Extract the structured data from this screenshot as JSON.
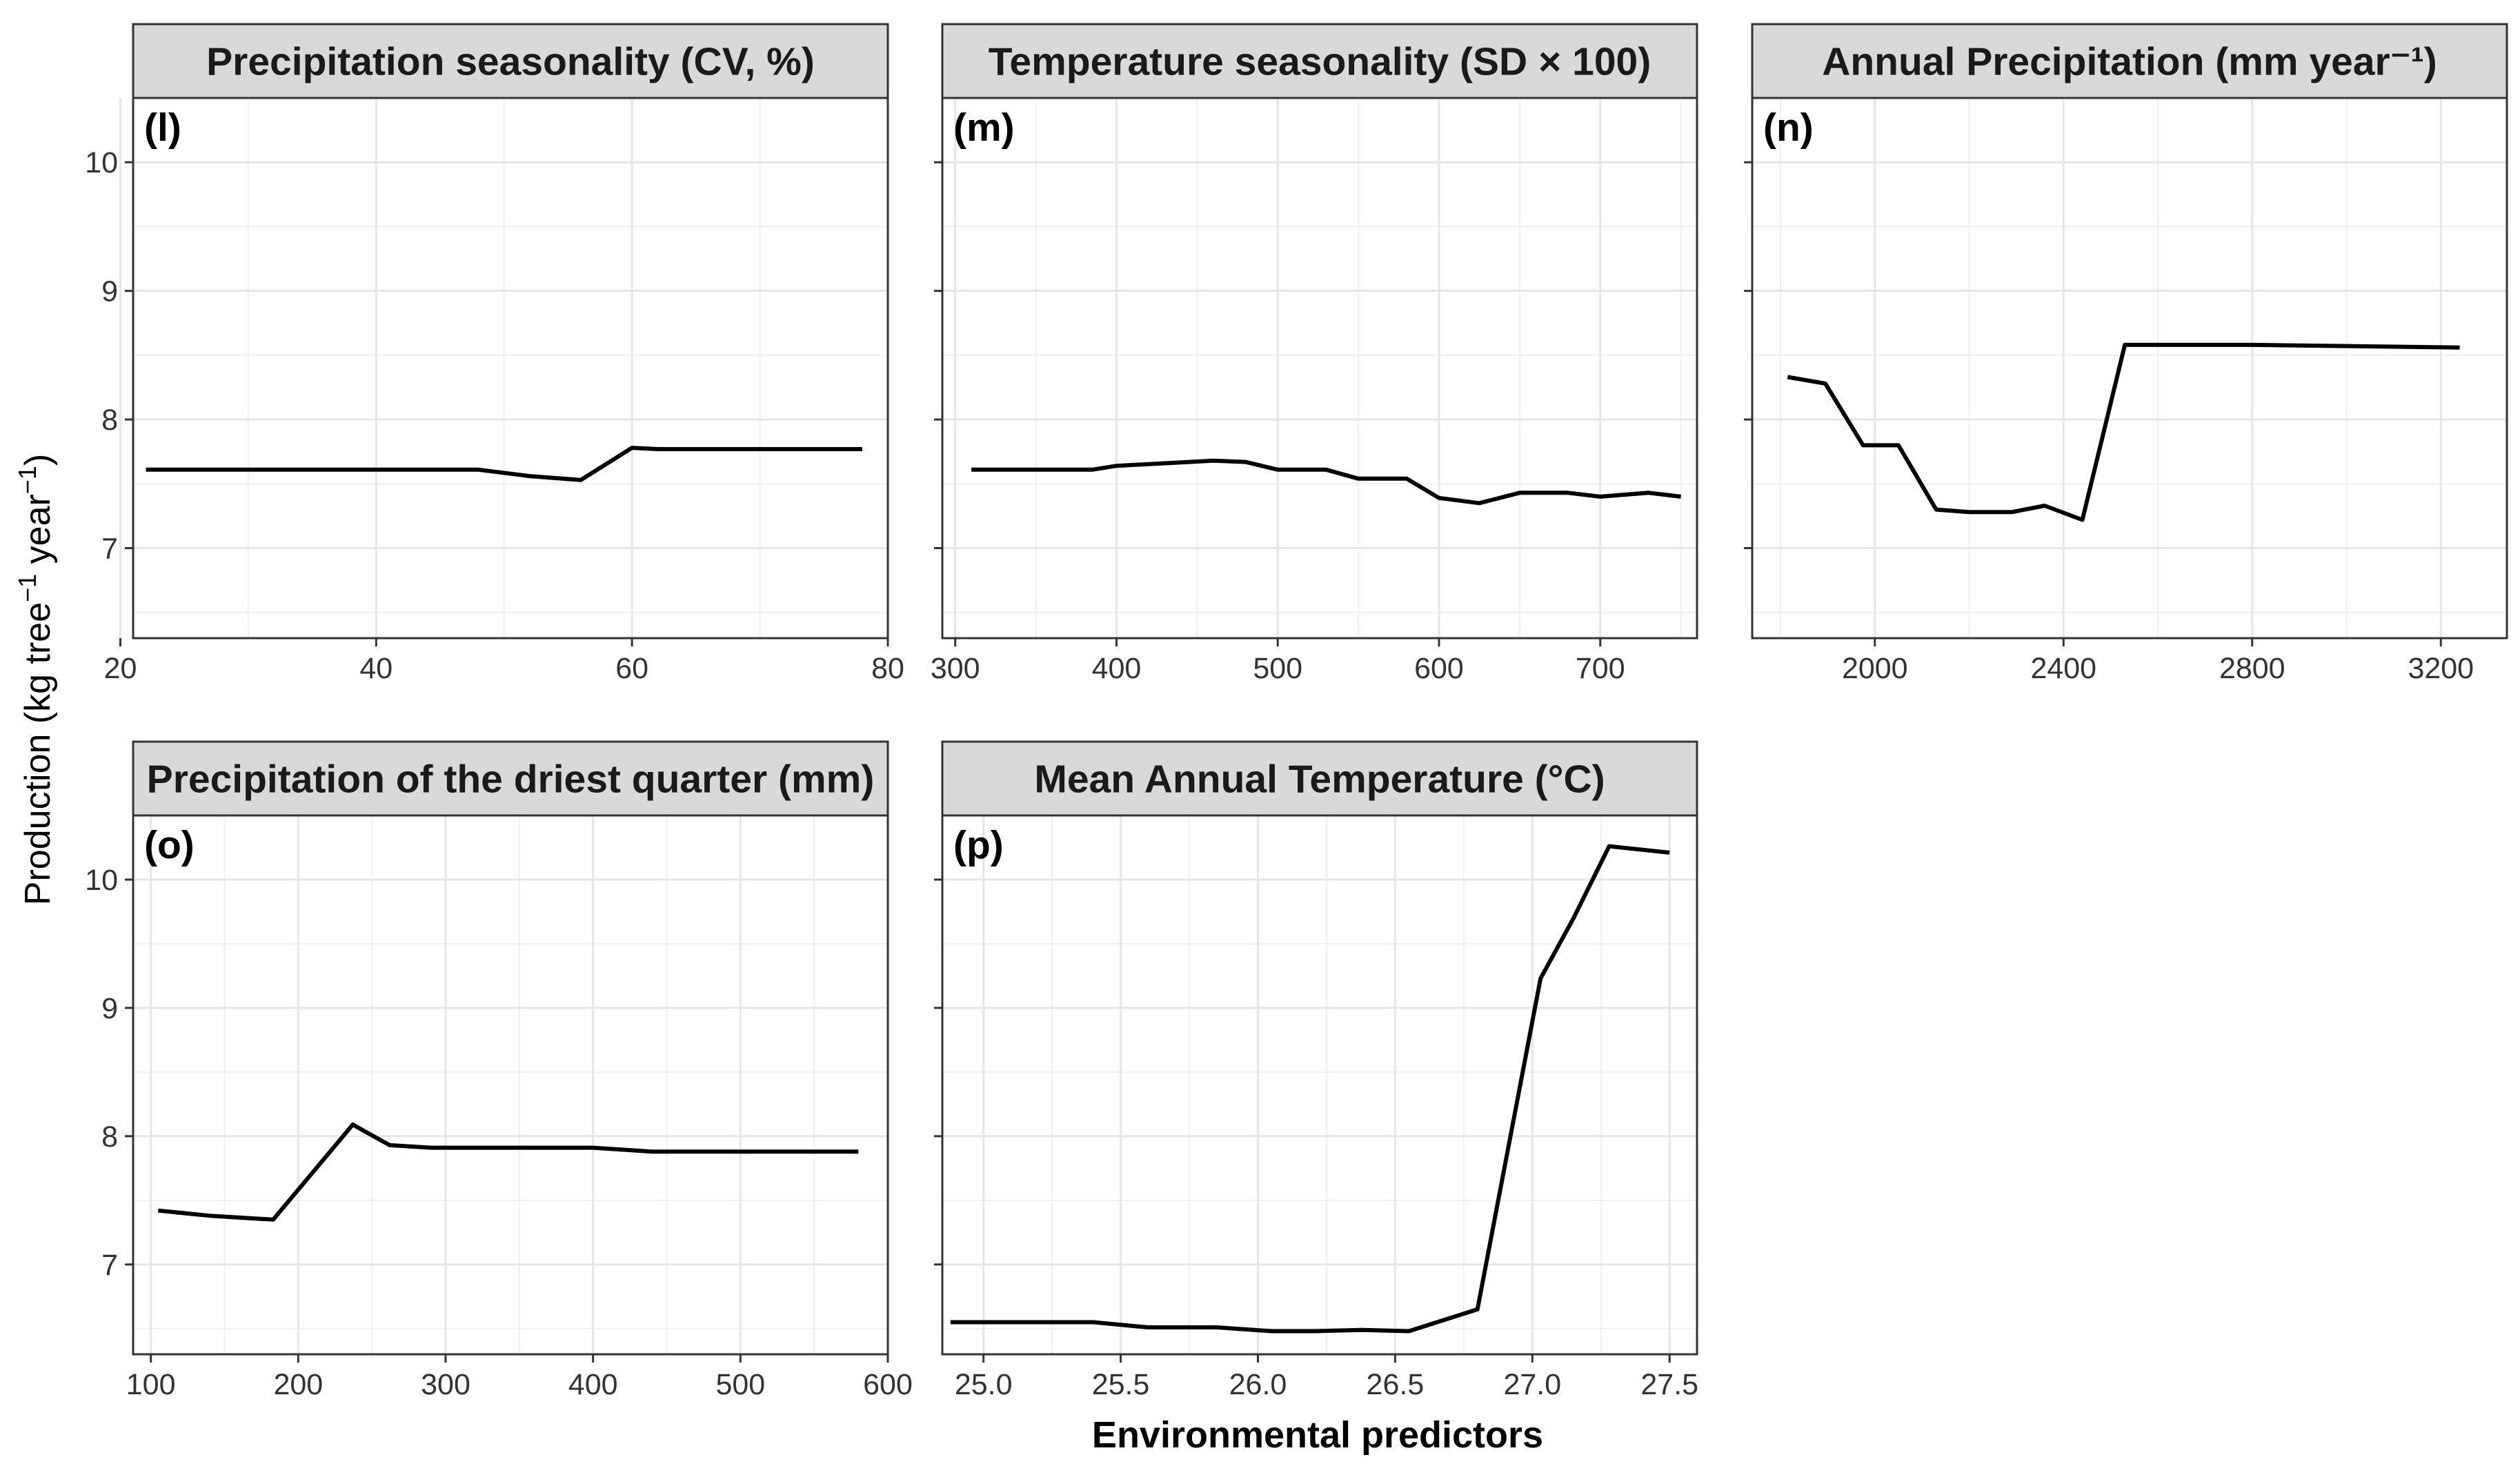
{
  "chart_data": [
    {
      "type": "line",
      "title": "Precipitation seasonality (CV, %)",
      "tag": "(l)",
      "xlim": [
        21,
        80
      ],
      "ylim": [
        6.3,
        10.5
      ],
      "x_ticks": [
        "20",
        "40",
        "60",
        "80"
      ],
      "y_ticks": [
        "7",
        "8",
        "9",
        "10"
      ],
      "grid": true,
      "x": [
        22,
        30,
        40,
        48,
        52,
        56,
        60,
        62,
        70,
        78
      ],
      "y": [
        7.61,
        7.61,
        7.61,
        7.61,
        7.56,
        7.53,
        7.78,
        7.77,
        7.77,
        7.77
      ]
    },
    {
      "type": "line",
      "title": "Temperature seasonality (SD × 100)",
      "tag": "(m)",
      "xlim": [
        292,
        760
      ],
      "ylim": [
        6.3,
        10.5
      ],
      "x_ticks": [
        "300",
        "400",
        "500",
        "600",
        "700"
      ],
      "y_ticks": [
        "7",
        "8",
        "9",
        "10"
      ],
      "grid": true,
      "x": [
        310,
        350,
        385,
        400,
        430,
        460,
        480,
        500,
        530,
        550,
        580,
        600,
        625,
        650,
        680,
        700,
        730,
        750
      ],
      "y": [
        7.61,
        7.61,
        7.61,
        7.64,
        7.66,
        7.68,
        7.67,
        7.61,
        7.61,
        7.54,
        7.54,
        7.39,
        7.35,
        7.43,
        7.43,
        7.4,
        7.43,
        7.4
      ]
    },
    {
      "type": "line",
      "title": "Annual Precipitation (mm year⁻¹)",
      "tag": "(n)",
      "xlim": [
        1740,
        3340
      ],
      "ylim": [
        6.3,
        10.5
      ],
      "x_ticks": [
        "2000",
        "2400",
        "2800",
        "3200"
      ],
      "y_ticks": [
        "7",
        "8",
        "9",
        "10"
      ],
      "grid": true,
      "x": [
        1815,
        1895,
        1975,
        2050,
        2130,
        2200,
        2290,
        2360,
        2440,
        2530,
        2800,
        3240
      ],
      "y": [
        8.33,
        8.28,
        7.8,
        7.8,
        7.3,
        7.28,
        7.28,
        7.33,
        7.22,
        8.58,
        8.58,
        8.56
      ]
    },
    {
      "type": "line",
      "title": "Precipitation of the driest quarter (mm)",
      "tag": "(o)",
      "xlim": [
        88,
        600
      ],
      "ylim": [
        6.3,
        10.5
      ],
      "x_ticks": [
        "100",
        "200",
        "300",
        "400",
        "500",
        "600"
      ],
      "y_ticks": [
        "7",
        "8",
        "9",
        "10"
      ],
      "grid": true,
      "x": [
        105,
        140,
        183,
        237,
        262,
        290,
        330,
        400,
        440,
        480,
        580
      ],
      "y": [
        7.42,
        7.38,
        7.35,
        8.09,
        7.93,
        7.91,
        7.91,
        7.91,
        7.88,
        7.88,
        7.88
      ]
    },
    {
      "type": "line",
      "title": "Mean Annual Temperature (°C)",
      "tag": "(p)",
      "xlim": [
        24.85,
        27.6
      ],
      "ylim": [
        6.3,
        10.5
      ],
      "x_ticks": [
        "25.0",
        "25.5",
        "26.0",
        "26.5",
        "27.0",
        "27.5"
      ],
      "y_ticks": [
        "7",
        "8",
        "9",
        "10"
      ],
      "grid": true,
      "x": [
        24.88,
        25.4,
        25.6,
        25.85,
        26.05,
        26.2,
        26.38,
        26.55,
        26.8,
        27.03,
        27.15,
        27.28,
        27.5
      ],
      "y": [
        6.55,
        6.55,
        6.51,
        6.51,
        6.48,
        6.48,
        6.49,
        6.48,
        6.65,
        9.23,
        9.7,
        10.26,
        10.21
      ]
    }
  ],
  "ylabel": "Production (kg tree⁻¹ year⁻¹)",
  "xlabel": "Environmental predictors"
}
